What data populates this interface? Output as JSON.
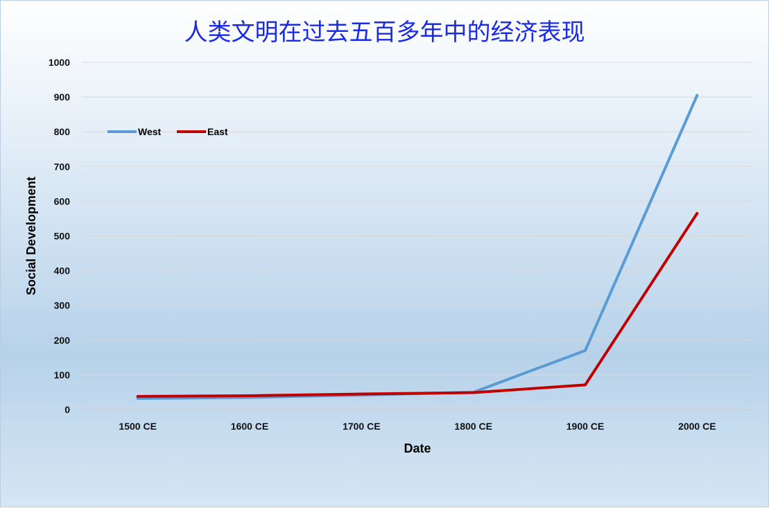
{
  "chart_data": {
    "type": "line",
    "title": "人类文明在过去五百多年中的经济表现",
    "xlabel": "Date",
    "ylabel": "Social Development",
    "categories": [
      "1500 CE",
      "1600 CE",
      "1700 CE",
      "1800 CE",
      "1900 CE",
      "2000 CE"
    ],
    "ylim": [
      0,
      1000
    ],
    "yticks": [
      0,
      100,
      200,
      300,
      400,
      500,
      600,
      700,
      800,
      900,
      1000
    ],
    "grid": true,
    "legend_position": "upper-left",
    "series": [
      {
        "name": "West",
        "color": "#5b9bd5",
        "values": [
          32,
          35,
          42,
          50,
          170,
          905
        ]
      },
      {
        "name": "East",
        "color": "#c00000",
        "values": [
          38,
          40,
          45,
          49,
          71,
          565
        ]
      }
    ]
  }
}
